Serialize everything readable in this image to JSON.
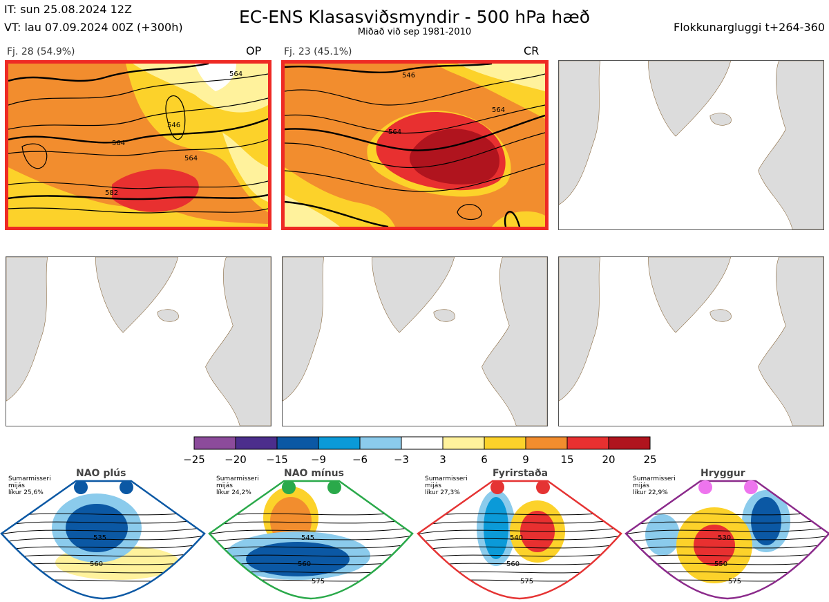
{
  "header": {
    "init_time": "IT: sun 25.08.2024 12Z",
    "valid_time": "VT: lau 07.09.2024 00Z  (+300h)",
    "title": "EC-ENS Klasasviðsmyndir - 500 hPa hæð",
    "subtitle": "Miðað við sep 1981-2010",
    "window": "Flokkunargluggi t+264-360"
  },
  "panels": [
    {
      "label": "Fj. 28 (54.9%)",
      "tag": "OP",
      "highlighted": true
    },
    {
      "label": "Fj. 23 (45.1%)",
      "tag": "CR",
      "highlighted": true
    },
    {
      "label": "",
      "tag": "",
      "highlighted": false
    },
    {
      "label": "",
      "tag": "",
      "highlighted": false
    },
    {
      "label": "",
      "tag": "",
      "highlighted": false
    },
    {
      "label": "",
      "tag": "",
      "highlighted": false
    }
  ],
  "contour_labels": {
    "panel1": [
      "564",
      "546",
      "564",
      "564",
      "546",
      "564",
      "582",
      "58"
    ],
    "panel2": [
      "546",
      "564",
      "564",
      "564"
    ]
  },
  "colorbar": {
    "ticks": [
      "−25",
      "−20",
      "−15",
      "−9",
      "−6",
      "−3",
      "3",
      "6",
      "9",
      "15",
      "20",
      "25"
    ],
    "colors": [
      "#8c4b9b",
      "#4c2e8c",
      "#0b58a4",
      "#0b9ad8",
      "#8bcbec",
      "#ffffff",
      "#fff29c",
      "#fcd22a",
      "#f28d2e",
      "#e83030",
      "#b0141e"
    ]
  },
  "regimes": [
    {
      "name": "NAO plús",
      "season": "Sumarmisseri",
      "word": "mijás",
      "prob": "líkur 25,6%",
      "color": "#0b58a4",
      "dot_color": "#0b58a4",
      "labels": [
        "535",
        "560"
      ]
    },
    {
      "name": "NAO mínus",
      "season": "Sumarmisseri",
      "word": "mijás",
      "prob": "líkur 24,2%",
      "color": "#2aa94a",
      "dot_color": "#2aa94a",
      "labels": [
        "545",
        "560",
        "575"
      ]
    },
    {
      "name": "Fyrirstaða",
      "season": "Sumarmisseri",
      "word": "mijás",
      "prob": "líkur 27,3%",
      "color": "#e53333",
      "dot_color": "#e53333",
      "labels": [
        "540",
        "560",
        "575"
      ]
    },
    {
      "name": "Hryggur",
      "season": "Sumarmisseri",
      "word": "mijás",
      "prob": "líkur 22,9%",
      "color": "#8b2a8b",
      "dot_color": "#ee74ee",
      "labels": [
        "530",
        "550",
        "575"
      ]
    }
  ],
  "chart_data": {
    "type": "heatmap",
    "title": "EC-ENS Klasasviðsmyndir - 500 hPa hæð",
    "colorbar_levels": [
      -25,
      -20,
      -15,
      -9,
      -6,
      -3,
      3,
      6,
      9,
      15,
      20,
      25
    ],
    "clusters": [
      {
        "label": "Fj. 28 (54.9%)",
        "tag": "OP",
        "members": 28,
        "percent": 54.9
      },
      {
        "label": "Fj. 23 (45.1%)",
        "tag": "CR",
        "members": 23,
        "percent": 45.1
      }
    ],
    "regime_probabilities": [
      {
        "name": "NAO plús",
        "percent": 25.6
      },
      {
        "name": "NAO mínus",
        "percent": 24.2
      },
      {
        "name": "Fyrirstaða",
        "percent": 27.3
      },
      {
        "name": "Hryggur",
        "percent": 22.9
      }
    ]
  }
}
